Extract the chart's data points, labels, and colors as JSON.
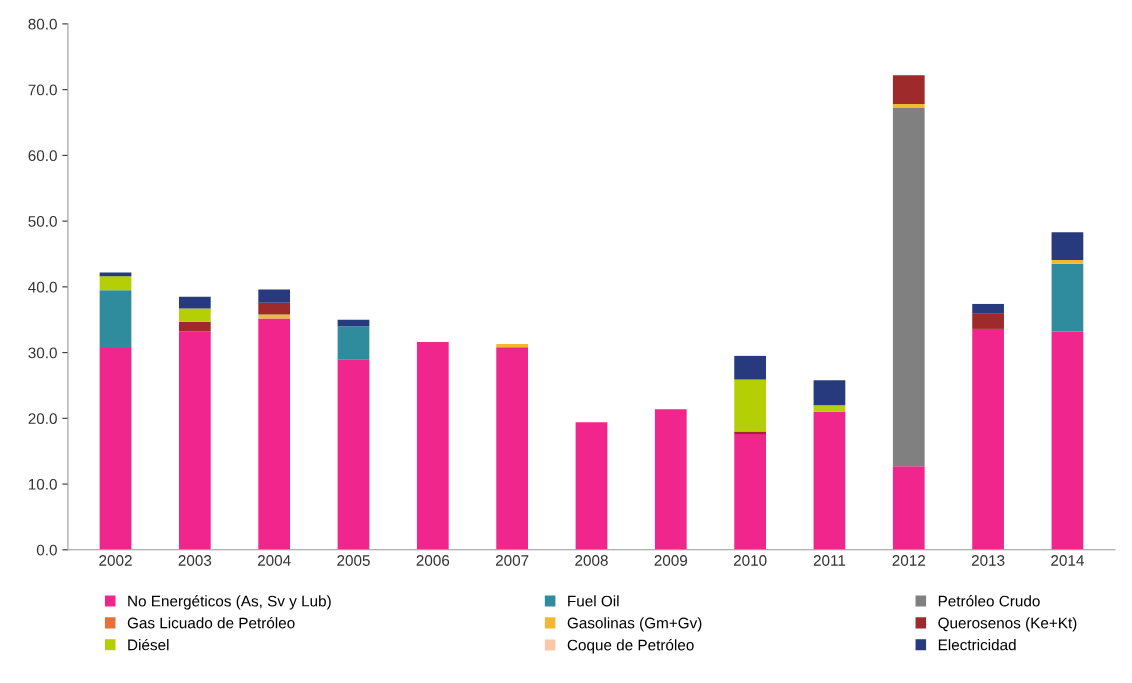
{
  "chart_data": {
    "type": "bar",
    "stacked": true,
    "categories": [
      "2002",
      "2003",
      "2004",
      "2005",
      "2006",
      "2007",
      "2008",
      "2009",
      "2010",
      "2011",
      "2012",
      "2013",
      "2014"
    ],
    "series": [
      {
        "name": "No Energéticos (As, Sv y Lub)",
        "color": "#f0268c",
        "values": [
          30.7,
          33.2,
          35.2,
          29.0,
          31.6,
          30.8,
          19.4,
          21.4,
          17.6,
          21.0,
          12.7,
          33.6,
          33.2
        ]
      },
      {
        "name": "Fuel Oil",
        "color": "#2e8c9c",
        "values": [
          8.8,
          0,
          0,
          5.0,
          0,
          0,
          0,
          0,
          0,
          0,
          0,
          0,
          10.3
        ]
      },
      {
        "name": "Petróleo Crudo",
        "color": "#808080",
        "values": [
          0,
          0,
          0,
          0,
          0,
          0,
          0,
          0,
          0,
          0,
          54.6,
          0,
          0
        ]
      },
      {
        "name": "Gas Licuado de Petróleo",
        "color": "#e8703a",
        "values": [
          0,
          0,
          0,
          0,
          0,
          0,
          0,
          0,
          0,
          0,
          0,
          0,
          0
        ]
      },
      {
        "name": "Gasolinas (Gm+Gv)",
        "color": "#f2b833",
        "values": [
          0,
          0,
          0.6,
          0,
          0,
          0.5,
          0,
          0,
          0,
          0,
          0.5,
          0,
          0.6
        ]
      },
      {
        "name": "Querosenos (Ke+Kt)",
        "color": "#9e2a2b",
        "values": [
          0,
          1.5,
          1.8,
          0,
          0,
          0,
          0,
          0,
          0.4,
          0,
          4.4,
          2.4,
          0
        ]
      },
      {
        "name": "Diésel",
        "color": "#b5cf06",
        "values": [
          2.1,
          2.0,
          0,
          0,
          0,
          0,
          0,
          0,
          7.9,
          1.0,
          0,
          0,
          0
        ]
      },
      {
        "name": "Coque de Petróleo",
        "color": "#f9c8a8",
        "values": [
          0,
          0,
          0,
          0,
          0,
          0,
          0,
          0,
          0,
          0,
          0,
          0,
          0
        ]
      },
      {
        "name": "Electricidad",
        "color": "#283a7e",
        "values": [
          0.6,
          1.8,
          2.0,
          1.0,
          0,
          0,
          0,
          0,
          3.6,
          3.8,
          0,
          1.4,
          4.2
        ]
      }
    ],
    "ylim": [
      0,
      80
    ],
    "yticks": [
      {
        "value": 0,
        "label": "0.0"
      },
      {
        "value": 10,
        "label": "10.0"
      },
      {
        "value": 20,
        "label": "20.0"
      },
      {
        "value": 30,
        "label": "30.0"
      },
      {
        "value": 40,
        "label": "40.0"
      },
      {
        "value": 50,
        "label": "50.0"
      },
      {
        "value": 60,
        "label": "60.0"
      },
      {
        "value": 70,
        "label": "70.0"
      },
      {
        "value": 80,
        "label": "80.0"
      }
    ],
    "grid": false,
    "legend": "bottom"
  }
}
